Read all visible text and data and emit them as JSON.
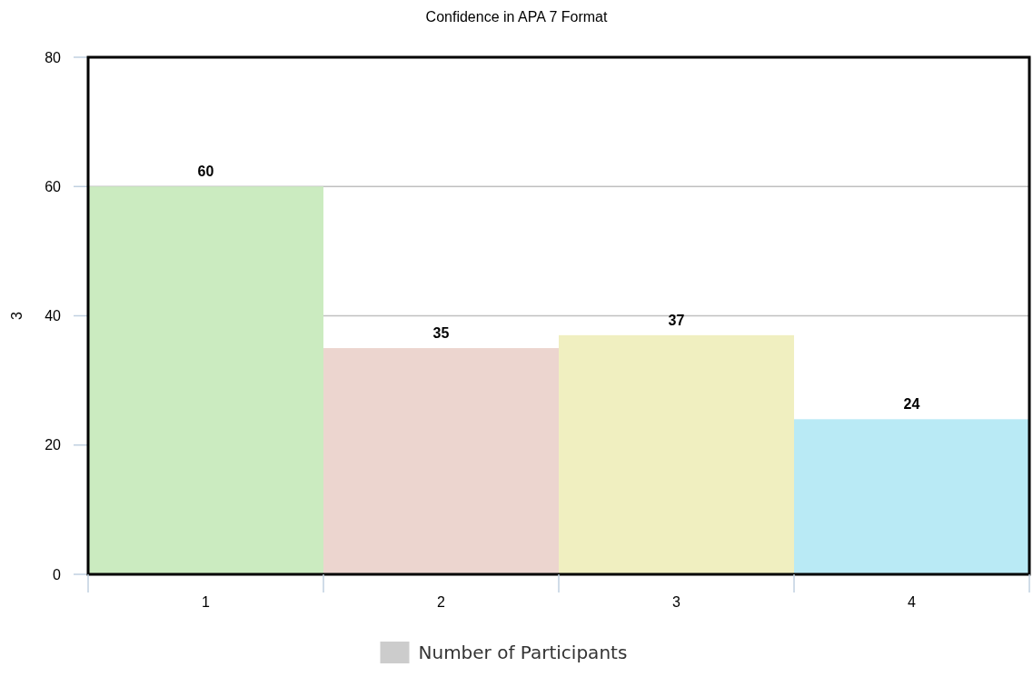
{
  "chart_data": {
    "type": "bar",
    "title": "Confidence in APA 7 Format",
    "ylabel": "3",
    "categories": [
      "1",
      "2",
      "3",
      "4"
    ],
    "series": [
      {
        "name": "Number of Participants",
        "color": "#cccccc",
        "colors": [
          "#cbebc0",
          "#ecd5cf",
          "#f0efc0",
          "#b9eaf5"
        ],
        "values": [
          60,
          35,
          37,
          24
        ]
      }
    ],
    "ylim": [
      0,
      80
    ],
    "yticks": [
      0,
      20,
      40,
      60,
      80
    ],
    "grid": "y",
    "legend": "bottom",
    "data_labels": true
  }
}
